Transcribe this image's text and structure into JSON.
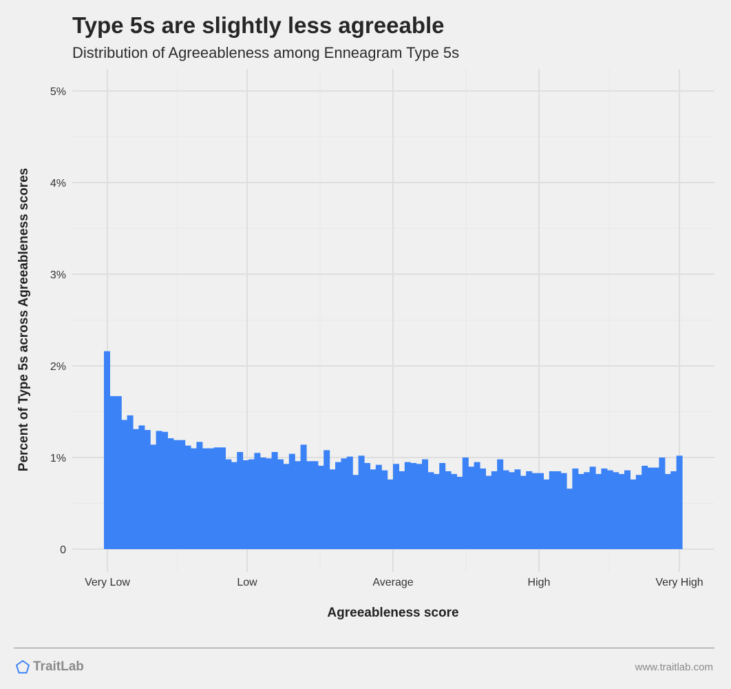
{
  "header": {
    "title": "Type 5s are slightly less agreeable",
    "subtitle": "Distribution of Agreeableness among Enneagram Type 5s"
  },
  "footer": {
    "brand": "TraitLab",
    "brand_icon": "pentagon-icon",
    "url": "www.traitlab.com"
  },
  "colors": {
    "background": "#f0f0f0",
    "bar": "#3b82f6",
    "grid_major": "#dedede",
    "grid_minor": "#e8e8e8",
    "brand_icon": "#3b82f6"
  },
  "chart_data": {
    "type": "bar",
    "xlabel": "Agreeableness score",
    "ylabel": "Percent of Type 5s across Agreeableness scores",
    "x_tick_labels": [
      "Very Low",
      "Low",
      "Average",
      "High",
      "Very High"
    ],
    "y_ticks": [
      0,
      1,
      2,
      3,
      4,
      5
    ],
    "y_tick_labels": [
      "0",
      "1%",
      "2%",
      "3%",
      "4%",
      "5%"
    ],
    "ylim": [
      0,
      5
    ],
    "grid": true,
    "legend": "none",
    "values": [
      2.16,
      1.67,
      1.67,
      1.41,
      1.46,
      1.31,
      1.35,
      1.3,
      1.14,
      1.29,
      1.28,
      1.21,
      1.19,
      1.19,
      1.13,
      1.1,
      1.17,
      1.1,
      1.1,
      1.11,
      1.11,
      0.98,
      0.95,
      1.06,
      0.97,
      0.98,
      1.05,
      1.0,
      0.99,
      1.06,
      0.98,
      0.93,
      1.04,
      0.96,
      1.14,
      0.96,
      0.96,
      0.91,
      1.08,
      0.87,
      0.95,
      0.99,
      1.01,
      0.81,
      1.02,
      0.94,
      0.87,
      0.92,
      0.86,
      0.76,
      0.93,
      0.85,
      0.95,
      0.94,
      0.93,
      0.98,
      0.84,
      0.82,
      0.94,
      0.85,
      0.82,
      0.79,
      1.0,
      0.9,
      0.95,
      0.88,
      0.8,
      0.85,
      0.98,
      0.86,
      0.84,
      0.87,
      0.8,
      0.85,
      0.83,
      0.83,
      0.76,
      0.85,
      0.85,
      0.83,
      0.66,
      0.88,
      0.82,
      0.84,
      0.9,
      0.82,
      0.88,
      0.86,
      0.84,
      0.82,
      0.86,
      0.76,
      0.81,
      0.91,
      0.89,
      0.89,
      1.0,
      0.82,
      0.85,
      1.02
    ]
  }
}
